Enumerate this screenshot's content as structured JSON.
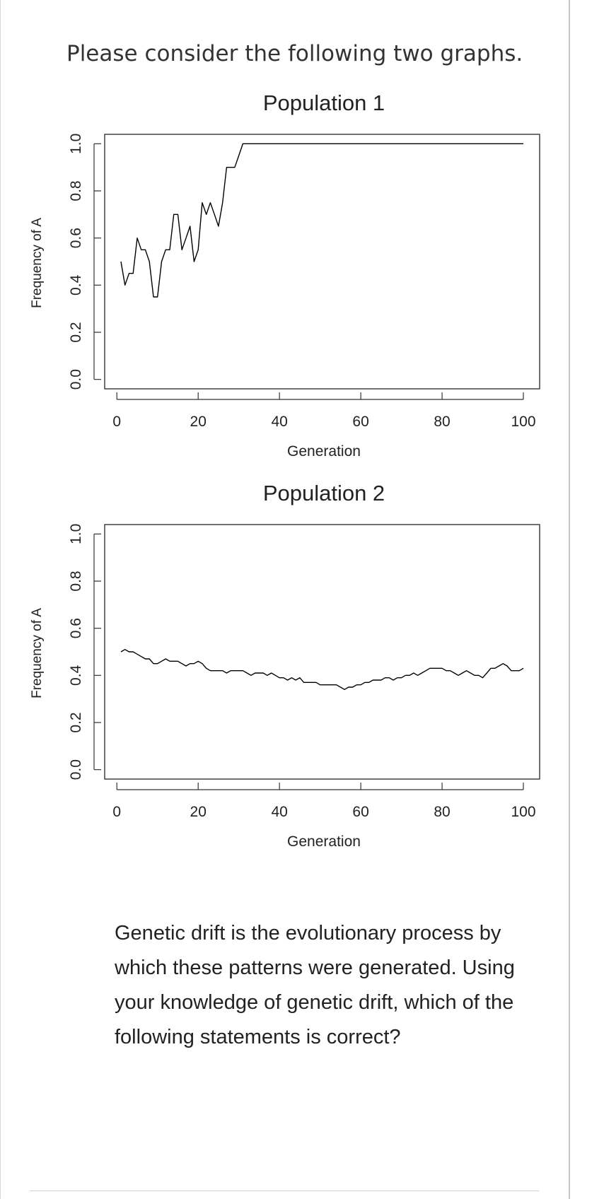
{
  "intro_text": "Please consider the following two graphs.",
  "question_text": "Genetic drift is the evolutionary process by which these patterns were generated. Using your knowledge of genetic drift, which of the following statements is correct?",
  "colors": {
    "line": "#000000",
    "axis": "#333333",
    "text": "#222222"
  },
  "chart_data": [
    {
      "type": "line",
      "title": "Population 1",
      "xlabel": "Generation",
      "ylabel": "Frequency of A",
      "xlim": [
        -3,
        104
      ],
      "ylim": [
        -0.04,
        1.04
      ],
      "xticks": [
        0,
        20,
        40,
        60,
        80,
        100
      ],
      "xtick_labels": [
        "0",
        "20",
        "40",
        "60",
        "80",
        "100"
      ],
      "yticks": [
        0,
        0.2,
        0.4,
        0.6,
        0.8,
        1.0
      ],
      "ytick_labels": [
        "0.0",
        "0.2",
        "0.4",
        "0.6",
        "0.8",
        "1.0"
      ],
      "grid": false,
      "x": [
        1,
        2,
        3,
        4,
        5,
        6,
        7,
        8,
        9,
        10,
        11,
        12,
        13,
        14,
        15,
        16,
        17,
        18,
        19,
        20,
        21,
        22,
        23,
        24,
        25,
        26,
        27,
        28,
        29,
        30,
        31,
        40,
        60,
        80,
        100
      ],
      "y": [
        0.5,
        0.4,
        0.45,
        0.45,
        0.6,
        0.55,
        0.55,
        0.5,
        0.35,
        0.35,
        0.5,
        0.55,
        0.55,
        0.7,
        0.7,
        0.55,
        0.6,
        0.65,
        0.5,
        0.55,
        0.75,
        0.7,
        0.75,
        0.7,
        0.65,
        0.75,
        0.9,
        0.9,
        0.9,
        0.95,
        1.0,
        1.0,
        1.0,
        1.0,
        1.0
      ]
    },
    {
      "type": "line",
      "title": "Population 2",
      "xlabel": "Generation",
      "ylabel": "Frequency of A",
      "xlim": [
        -3,
        104
      ],
      "ylim": [
        -0.04,
        1.04
      ],
      "xticks": [
        0,
        20,
        40,
        60,
        80,
        100
      ],
      "xtick_labels": [
        "0",
        "20",
        "40",
        "60",
        "80",
        "100"
      ],
      "yticks": [
        0,
        0.2,
        0.4,
        0.6,
        0.8,
        1.0
      ],
      "ytick_labels": [
        "0.0",
        "0.2",
        "0.4",
        "0.6",
        "0.8",
        "1.0"
      ],
      "grid": false,
      "x": [
        1,
        2,
        3,
        4,
        5,
        6,
        7,
        8,
        9,
        10,
        11,
        12,
        13,
        14,
        15,
        16,
        17,
        18,
        19,
        20,
        21,
        22,
        23,
        24,
        25,
        26,
        27,
        28,
        29,
        30,
        31,
        32,
        33,
        34,
        35,
        36,
        37,
        38,
        39,
        40,
        41,
        42,
        43,
        44,
        45,
        46,
        47,
        48,
        49,
        50,
        51,
        52,
        53,
        54,
        55,
        56,
        57,
        58,
        59,
        60,
        61,
        62,
        63,
        64,
        65,
        66,
        67,
        68,
        69,
        70,
        71,
        72,
        73,
        74,
        75,
        76,
        77,
        78,
        79,
        80,
        81,
        82,
        83,
        84,
        85,
        86,
        87,
        88,
        89,
        90,
        91,
        92,
        93,
        94,
        95,
        96,
        97,
        98,
        99,
        100
      ],
      "y": [
        0.5,
        0.51,
        0.5,
        0.5,
        0.49,
        0.48,
        0.47,
        0.47,
        0.45,
        0.45,
        0.46,
        0.47,
        0.46,
        0.46,
        0.46,
        0.45,
        0.44,
        0.45,
        0.45,
        0.46,
        0.45,
        0.43,
        0.42,
        0.42,
        0.42,
        0.42,
        0.41,
        0.42,
        0.42,
        0.42,
        0.42,
        0.41,
        0.4,
        0.41,
        0.41,
        0.41,
        0.4,
        0.41,
        0.4,
        0.39,
        0.39,
        0.38,
        0.39,
        0.38,
        0.39,
        0.37,
        0.37,
        0.37,
        0.37,
        0.36,
        0.36,
        0.36,
        0.36,
        0.36,
        0.35,
        0.34,
        0.35,
        0.35,
        0.36,
        0.36,
        0.37,
        0.37,
        0.38,
        0.38,
        0.38,
        0.39,
        0.39,
        0.38,
        0.39,
        0.39,
        0.4,
        0.4,
        0.41,
        0.4,
        0.41,
        0.42,
        0.43,
        0.43,
        0.43,
        0.43,
        0.42,
        0.42,
        0.41,
        0.4,
        0.41,
        0.42,
        0.41,
        0.4,
        0.4,
        0.39,
        0.41,
        0.43,
        0.43,
        0.44,
        0.45,
        0.44,
        0.42,
        0.42,
        0.42,
        0.43
      ]
    }
  ]
}
